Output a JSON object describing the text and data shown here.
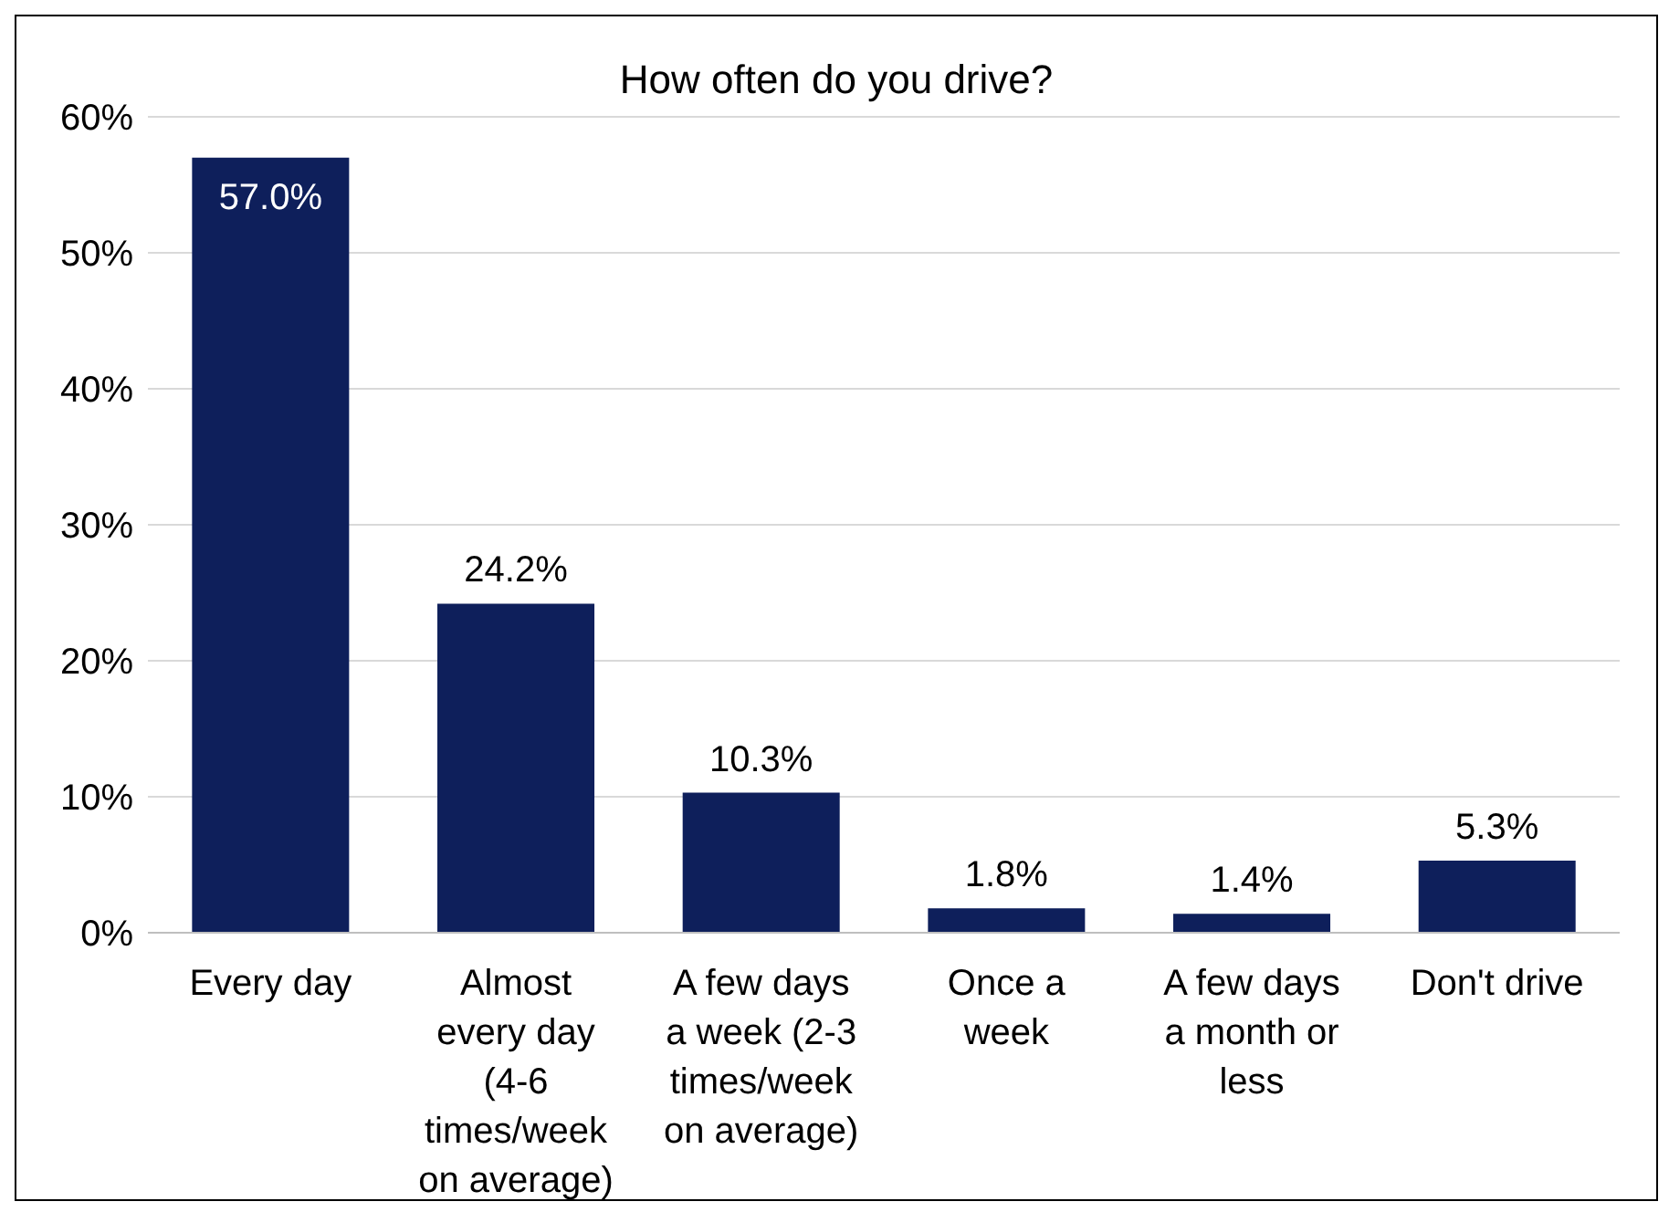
{
  "chart_data": {
    "type": "bar",
    "title": "How often do you drive?",
    "categories": [
      "Every day",
      "Almost every day (4-6 times/week on average)",
      "A few days a week (2-3 times/week on average)",
      "Once a week",
      "A few days a month or less",
      "Don't drive"
    ],
    "values": [
      57.0,
      24.2,
      10.3,
      1.8,
      1.4,
      5.3
    ],
    "value_labels": [
      "57.0%",
      "24.2%",
      "10.3%",
      "1.8%",
      "1.4%",
      "5.3%"
    ],
    "color": "#0e1f5b",
    "ylim": [
      0,
      60
    ],
    "yticks": [
      {
        "value": 0,
        "label": "0%"
      },
      {
        "value": 10,
        "label": "10%"
      },
      {
        "value": 20,
        "label": "20%"
      },
      {
        "value": 30,
        "label": "30%"
      },
      {
        "value": 40,
        "label": "40%"
      },
      {
        "value": 50,
        "label": "50%"
      },
      {
        "value": 60,
        "label": "60%"
      }
    ],
    "grid": "y",
    "legend": false
  }
}
